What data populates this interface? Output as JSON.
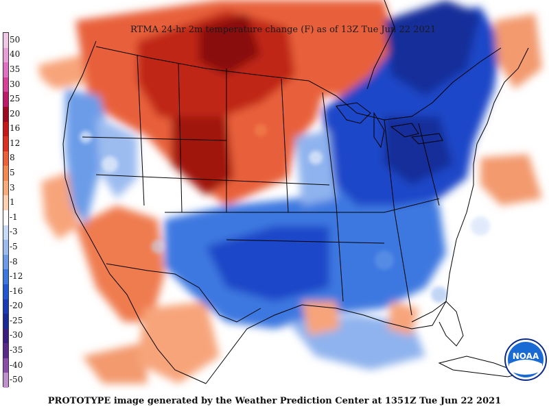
{
  "map": {
    "title": "RTMA 24-hr 2m temperature change (F) as of 13Z Tue Jun 22 2021",
    "footer": "PROTOTYPE image generated by the Weather Prediction Center at 1351Z Tue Jun 22 2021",
    "logo_text": "NOAA",
    "colors": {
      "warm_light": "#f7a47a",
      "warm_mid": "#e8603a",
      "warm_dark": "#c02818",
      "warm_deep": "#8a0e0e",
      "cool_light": "#8fb3ee",
      "cool_mid": "#3d78e0",
      "cool_dark": "#1c46c8",
      "cool_deep": "#182e9a",
      "neutral": "#ffffff"
    }
  },
  "legend": [
    {
      "label": "50",
      "color": "#f0c8e6"
    },
    {
      "label": "40",
      "color": "#e89ed6"
    },
    {
      "label": "35",
      "color": "#e070c4"
    },
    {
      "label": "30",
      "color": "#d8409a"
    },
    {
      "label": "25",
      "color": "#c0186a"
    },
    {
      "label": "20",
      "color": "#a00820"
    },
    {
      "label": "16",
      "color": "#c81818"
    },
    {
      "label": "12",
      "color": "#e03020"
    },
    {
      "label": "8",
      "color": "#ee6038"
    },
    {
      "label": "5",
      "color": "#f48850"
    },
    {
      "label": "3",
      "color": "#f8aa78"
    },
    {
      "label": "1",
      "color": "#fcd0b0"
    },
    {
      "label": "-1",
      "color": "#ffffff"
    },
    {
      "label": "-3",
      "color": "#c8daf8"
    },
    {
      "label": "-5",
      "color": "#9cbcf0"
    },
    {
      "label": "-8",
      "color": "#6c9ce8"
    },
    {
      "label": "-12",
      "color": "#3c78e0"
    },
    {
      "label": "-16",
      "color": "#2456d4"
    },
    {
      "label": "-20",
      "color": "#1a3cb8"
    },
    {
      "label": "-25",
      "color": "#1a2a96"
    },
    {
      "label": "-30",
      "color": "#3a1e80"
    },
    {
      "label": "-35",
      "color": "#5a2a8a"
    },
    {
      "label": "-40",
      "color": "#8a4ea8"
    },
    {
      "label": "-50",
      "color": "#c090cc"
    }
  ]
}
